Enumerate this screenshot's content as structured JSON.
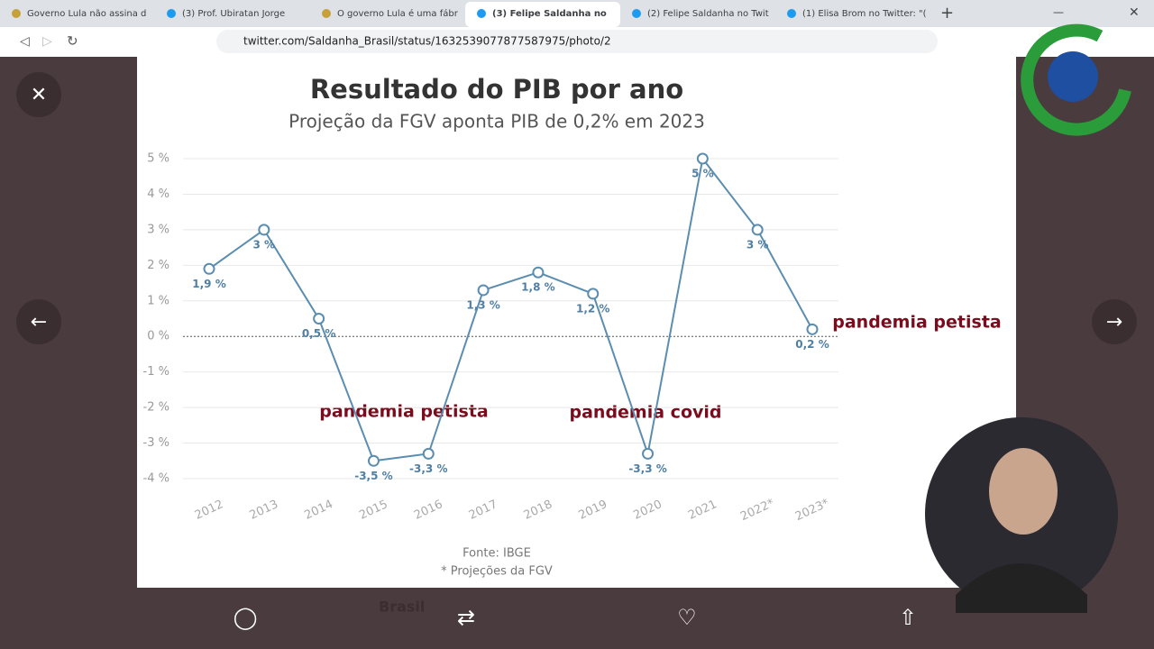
{
  "browser": {
    "tabs": [
      "Governo Lula não assina d",
      "(3) Prof. Ubiratan Jorge",
      "O governo Lula é uma fábr",
      "(3) Felipe Saldanha no",
      "(2) Felipe Saldanha no Twit",
      "(1) Elisa Brom no Twitter: \"("
    ],
    "url": "twitter.com/Saldanha_Brasil/status/1632539077877587975/photo/2"
  },
  "background_text": "Brasil",
  "chart_data": {
    "type": "line",
    "title": "Resultado do PIB por ano",
    "subtitle": "Projeção da FGV aponta PIB de 0,2% em 2023",
    "categories": [
      "2012",
      "2013",
      "2014",
      "2015",
      "2016",
      "2017",
      "2018",
      "2019",
      "2020",
      "2021",
      "2022*",
      "2023*"
    ],
    "values": [
      1.9,
      3,
      0.5,
      -3.5,
      -3.3,
      1.3,
      1.8,
      1.2,
      -3.3,
      5,
      3,
      0.2
    ],
    "value_labels": [
      "1,9 %",
      "3 %",
      "0,5 %",
      "-3,5 %",
      "-3,3 %",
      "1,3 %",
      "1,8 %",
      "1,2 %",
      "-3,3 %",
      "5 %",
      "3 %",
      "0,2 %"
    ],
    "color": "#5b8db0",
    "ylim": [
      -4,
      5
    ],
    "yticks": [
      {
        "value": -4,
        "label": "-4 %"
      },
      {
        "value": -3,
        "label": "-3 %"
      },
      {
        "value": -2,
        "label": "-2 %"
      },
      {
        "value": -1,
        "label": "-1 %"
      },
      {
        "value": 0,
        "label": "0 %"
      },
      {
        "value": 1,
        "label": "1 %"
      },
      {
        "value": 2,
        "label": "2 %"
      },
      {
        "value": 3,
        "label": "3 %"
      },
      {
        "value": 4,
        "label": "4 %"
      },
      {
        "value": 5,
        "label": "5 %"
      }
    ],
    "grid": true,
    "annotations": [
      "pandemia petista",
      "pandemia covid",
      "pandemia petista"
    ],
    "source": "Fonte: IBGE",
    "note": "* Projeções da FGV"
  }
}
